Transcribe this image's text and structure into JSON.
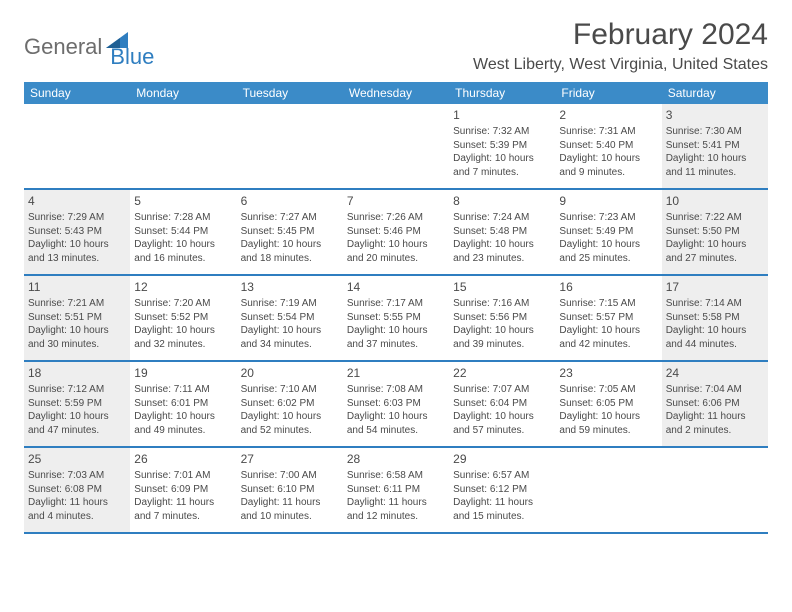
{
  "logo": {
    "general": "General",
    "blue": "Blue"
  },
  "title": "February 2024",
  "location": "West Liberty, West Virginia, United States",
  "colors": {
    "header_bg": "#3b8bc8",
    "accent": "#2f7ec0",
    "weekend_bg": "#eeeeee",
    "text": "#4a4a4a"
  },
  "weekdays": [
    "Sunday",
    "Monday",
    "Tuesday",
    "Wednesday",
    "Thursday",
    "Friday",
    "Saturday"
  ],
  "weeks": [
    [
      {
        "empty": true
      },
      {
        "empty": true
      },
      {
        "empty": true
      },
      {
        "empty": true
      },
      {
        "n": "1",
        "sr": "Sunrise: 7:32 AM",
        "ss": "Sunset: 5:39 PM",
        "d1": "Daylight: 10 hours",
        "d2": "and 7 minutes."
      },
      {
        "n": "2",
        "sr": "Sunrise: 7:31 AM",
        "ss": "Sunset: 5:40 PM",
        "d1": "Daylight: 10 hours",
        "d2": "and 9 minutes."
      },
      {
        "n": "3",
        "sr": "Sunrise: 7:30 AM",
        "ss": "Sunset: 5:41 PM",
        "d1": "Daylight: 10 hours",
        "d2": "and 11 minutes.",
        "we": true
      }
    ],
    [
      {
        "n": "4",
        "sr": "Sunrise: 7:29 AM",
        "ss": "Sunset: 5:43 PM",
        "d1": "Daylight: 10 hours",
        "d2": "and 13 minutes.",
        "we": true
      },
      {
        "n": "5",
        "sr": "Sunrise: 7:28 AM",
        "ss": "Sunset: 5:44 PM",
        "d1": "Daylight: 10 hours",
        "d2": "and 16 minutes."
      },
      {
        "n": "6",
        "sr": "Sunrise: 7:27 AM",
        "ss": "Sunset: 5:45 PM",
        "d1": "Daylight: 10 hours",
        "d2": "and 18 minutes."
      },
      {
        "n": "7",
        "sr": "Sunrise: 7:26 AM",
        "ss": "Sunset: 5:46 PM",
        "d1": "Daylight: 10 hours",
        "d2": "and 20 minutes."
      },
      {
        "n": "8",
        "sr": "Sunrise: 7:24 AM",
        "ss": "Sunset: 5:48 PM",
        "d1": "Daylight: 10 hours",
        "d2": "and 23 minutes."
      },
      {
        "n": "9",
        "sr": "Sunrise: 7:23 AM",
        "ss": "Sunset: 5:49 PM",
        "d1": "Daylight: 10 hours",
        "d2": "and 25 minutes."
      },
      {
        "n": "10",
        "sr": "Sunrise: 7:22 AM",
        "ss": "Sunset: 5:50 PM",
        "d1": "Daylight: 10 hours",
        "d2": "and 27 minutes.",
        "we": true
      }
    ],
    [
      {
        "n": "11",
        "sr": "Sunrise: 7:21 AM",
        "ss": "Sunset: 5:51 PM",
        "d1": "Daylight: 10 hours",
        "d2": "and 30 minutes.",
        "we": true
      },
      {
        "n": "12",
        "sr": "Sunrise: 7:20 AM",
        "ss": "Sunset: 5:52 PM",
        "d1": "Daylight: 10 hours",
        "d2": "and 32 minutes."
      },
      {
        "n": "13",
        "sr": "Sunrise: 7:19 AM",
        "ss": "Sunset: 5:54 PM",
        "d1": "Daylight: 10 hours",
        "d2": "and 34 minutes."
      },
      {
        "n": "14",
        "sr": "Sunrise: 7:17 AM",
        "ss": "Sunset: 5:55 PM",
        "d1": "Daylight: 10 hours",
        "d2": "and 37 minutes."
      },
      {
        "n": "15",
        "sr": "Sunrise: 7:16 AM",
        "ss": "Sunset: 5:56 PM",
        "d1": "Daylight: 10 hours",
        "d2": "and 39 minutes."
      },
      {
        "n": "16",
        "sr": "Sunrise: 7:15 AM",
        "ss": "Sunset: 5:57 PM",
        "d1": "Daylight: 10 hours",
        "d2": "and 42 minutes."
      },
      {
        "n": "17",
        "sr": "Sunrise: 7:14 AM",
        "ss": "Sunset: 5:58 PM",
        "d1": "Daylight: 10 hours",
        "d2": "and 44 minutes.",
        "we": true
      }
    ],
    [
      {
        "n": "18",
        "sr": "Sunrise: 7:12 AM",
        "ss": "Sunset: 5:59 PM",
        "d1": "Daylight: 10 hours",
        "d2": "and 47 minutes.",
        "we": true
      },
      {
        "n": "19",
        "sr": "Sunrise: 7:11 AM",
        "ss": "Sunset: 6:01 PM",
        "d1": "Daylight: 10 hours",
        "d2": "and 49 minutes."
      },
      {
        "n": "20",
        "sr": "Sunrise: 7:10 AM",
        "ss": "Sunset: 6:02 PM",
        "d1": "Daylight: 10 hours",
        "d2": "and 52 minutes."
      },
      {
        "n": "21",
        "sr": "Sunrise: 7:08 AM",
        "ss": "Sunset: 6:03 PM",
        "d1": "Daylight: 10 hours",
        "d2": "and 54 minutes."
      },
      {
        "n": "22",
        "sr": "Sunrise: 7:07 AM",
        "ss": "Sunset: 6:04 PM",
        "d1": "Daylight: 10 hours",
        "d2": "and 57 minutes."
      },
      {
        "n": "23",
        "sr": "Sunrise: 7:05 AM",
        "ss": "Sunset: 6:05 PM",
        "d1": "Daylight: 10 hours",
        "d2": "and 59 minutes."
      },
      {
        "n": "24",
        "sr": "Sunrise: 7:04 AM",
        "ss": "Sunset: 6:06 PM",
        "d1": "Daylight: 11 hours",
        "d2": "and 2 minutes.",
        "we": true
      }
    ],
    [
      {
        "n": "25",
        "sr": "Sunrise: 7:03 AM",
        "ss": "Sunset: 6:08 PM",
        "d1": "Daylight: 11 hours",
        "d2": "and 4 minutes.",
        "we": true
      },
      {
        "n": "26",
        "sr": "Sunrise: 7:01 AM",
        "ss": "Sunset: 6:09 PM",
        "d1": "Daylight: 11 hours",
        "d2": "and 7 minutes."
      },
      {
        "n": "27",
        "sr": "Sunrise: 7:00 AM",
        "ss": "Sunset: 6:10 PM",
        "d1": "Daylight: 11 hours",
        "d2": "and 10 minutes."
      },
      {
        "n": "28",
        "sr": "Sunrise: 6:58 AM",
        "ss": "Sunset: 6:11 PM",
        "d1": "Daylight: 11 hours",
        "d2": "and 12 minutes."
      },
      {
        "n": "29",
        "sr": "Sunrise: 6:57 AM",
        "ss": "Sunset: 6:12 PM",
        "d1": "Daylight: 11 hours",
        "d2": "and 15 minutes."
      },
      {
        "empty": true
      },
      {
        "empty": true
      }
    ]
  ]
}
